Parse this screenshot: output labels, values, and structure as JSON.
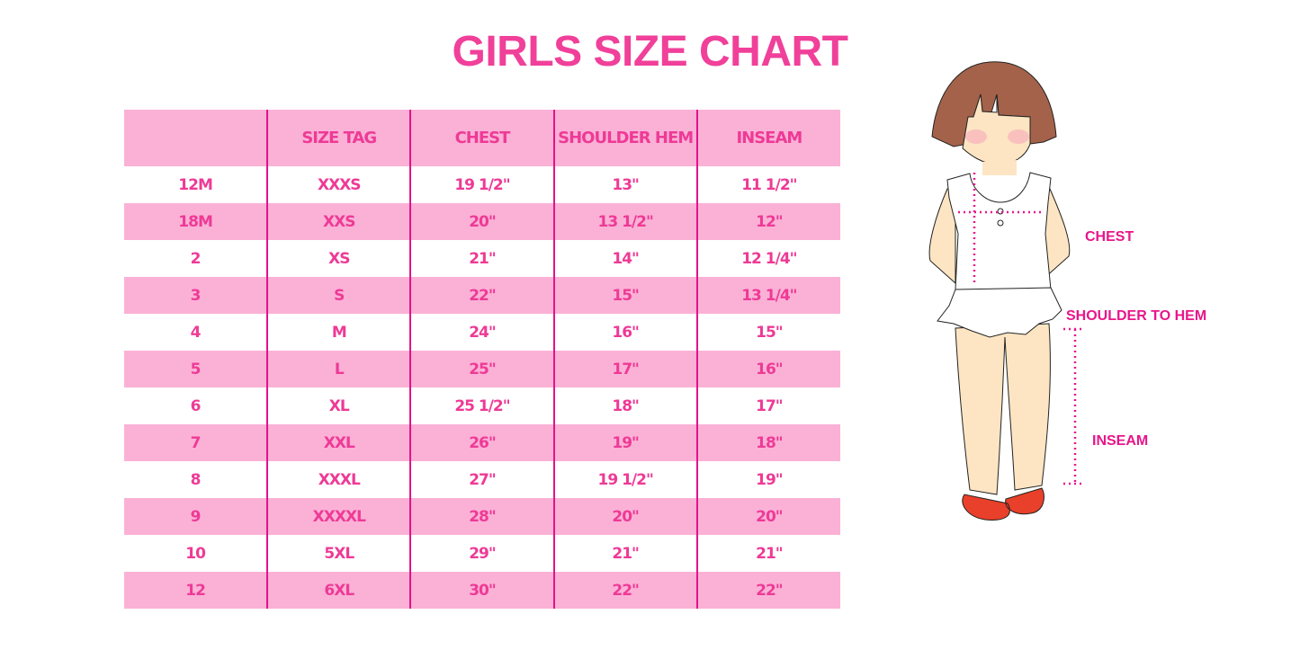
{
  "title": "GIRLS SIZE CHART",
  "table": {
    "headers": [
      "",
      "SIZE TAG",
      "CHEST",
      "SHOULDER HEM",
      "INSEAM"
    ],
    "rows": [
      [
        "12M",
        "XXXS",
        "19 1/2\"",
        "13\"",
        "11 1/2\""
      ],
      [
        "18M",
        "XXS",
        "20\"",
        "13 1/2\"",
        "12\""
      ],
      [
        "2",
        "XS",
        "21\"",
        "14\"",
        "12 1/4\""
      ],
      [
        "3",
        "S",
        "22\"",
        "15\"",
        "13 1/4\""
      ],
      [
        "4",
        "M",
        "24\"",
        "16\"",
        "15\""
      ],
      [
        "5",
        "L",
        "25\"",
        "17\"",
        "16\""
      ],
      [
        "6",
        "XL",
        "25 1/2\"",
        "18\"",
        "17\""
      ],
      [
        "7",
        "XXL",
        "26\"",
        "19\"",
        "18\""
      ],
      [
        "8",
        "XXXL",
        "27\"",
        "19 1/2\"",
        "19\""
      ],
      [
        "9",
        "XXXXL",
        "28\"",
        "20\"",
        "20\""
      ],
      [
        "10",
        "5XL",
        "29\"",
        "21\"",
        "21\""
      ],
      [
        "12",
        "6XL",
        "30\"",
        "22\"",
        "22\""
      ]
    ]
  },
  "figure": {
    "labels": {
      "chest": "CHEST",
      "shoulder_to_hem": "SHOULDER TO HEM",
      "inseam": "INSEAM"
    }
  },
  "colors": {
    "accent": "#ee3a96",
    "row_pink": "#fbb1d6",
    "divider": "#e4128a"
  }
}
